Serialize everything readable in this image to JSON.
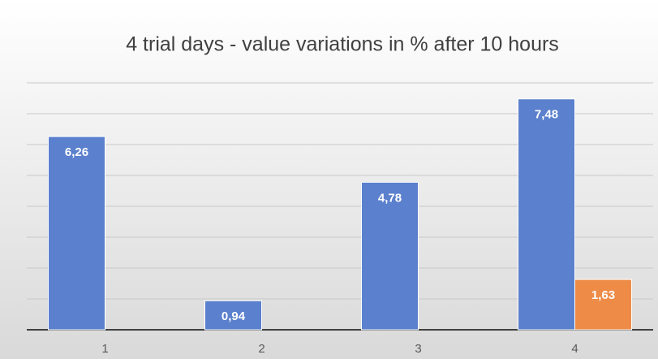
{
  "chart_data": {
    "type": "bar",
    "title": "4 trial days - value variations in % after 10 hours",
    "categories": [
      "1",
      "2",
      "3",
      "4"
    ],
    "series": [
      {
        "color": "#5b80cd",
        "values": [
          6.26,
          0.94,
          4.78,
          7.48
        ],
        "value_labels": [
          "6,26",
          "0,94",
          "4,78",
          "7,48"
        ]
      },
      {
        "color": "#ed8b47",
        "values": [
          null,
          null,
          null,
          1.63
        ],
        "value_labels": [
          null,
          null,
          null,
          "1,63"
        ]
      }
    ],
    "ylim": [
      0,
      8
    ],
    "yticks": [
      0,
      1,
      2,
      3,
      4,
      5,
      6,
      7,
      8
    ],
    "grid": true
  }
}
